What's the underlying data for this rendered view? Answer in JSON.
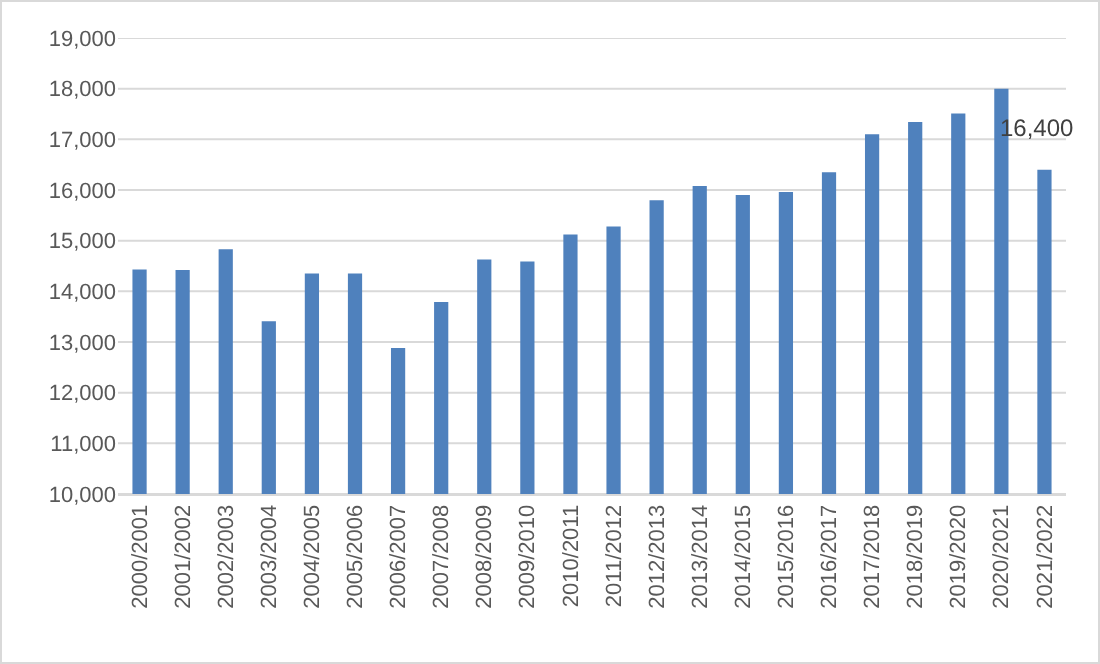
{
  "chart_data": {
    "type": "bar",
    "categories": [
      "2000/2001",
      "2001/2002",
      "2002/2003",
      "2003/2004",
      "2004/2005",
      "2005/2006",
      "2006/2007",
      "2007/2008",
      "2008/2009",
      "2009/2010",
      "2010/2011",
      "2011/2012",
      "2012/2013",
      "2013/2014",
      "2014/2015",
      "2015/2016",
      "2016/2017",
      "2017/2018",
      "2018/2019",
      "2019/2020",
      "2020/2021",
      "2021/2022"
    ],
    "values": [
      14430,
      14420,
      14830,
      13410,
      14350,
      14350,
      12880,
      13790,
      14630,
      14590,
      15120,
      15280,
      15800,
      16080,
      15900,
      15960,
      16350,
      17100,
      17340,
      17510,
      18000,
      16400
    ],
    "value_labels": [
      null,
      null,
      null,
      null,
      null,
      null,
      null,
      null,
      null,
      null,
      null,
      null,
      null,
      null,
      null,
      null,
      null,
      null,
      null,
      null,
      null,
      "16,400"
    ],
    "color": "#4f81bd",
    "ylim": [
      10000,
      19000
    ],
    "yticks": [
      {
        "value": 10000,
        "label": "10,000"
      },
      {
        "value": 11000,
        "label": "11,000"
      },
      {
        "value": 12000,
        "label": "12,000"
      },
      {
        "value": 13000,
        "label": "13,000"
      },
      {
        "value": 14000,
        "label": "14,000"
      },
      {
        "value": 15000,
        "label": "15,000"
      },
      {
        "value": 16000,
        "label": "16,000"
      },
      {
        "value": 17000,
        "label": "17,000"
      },
      {
        "value": 18000,
        "label": "18,000"
      },
      {
        "value": 19000,
        "label": "19,000"
      }
    ],
    "grid": "y"
  }
}
